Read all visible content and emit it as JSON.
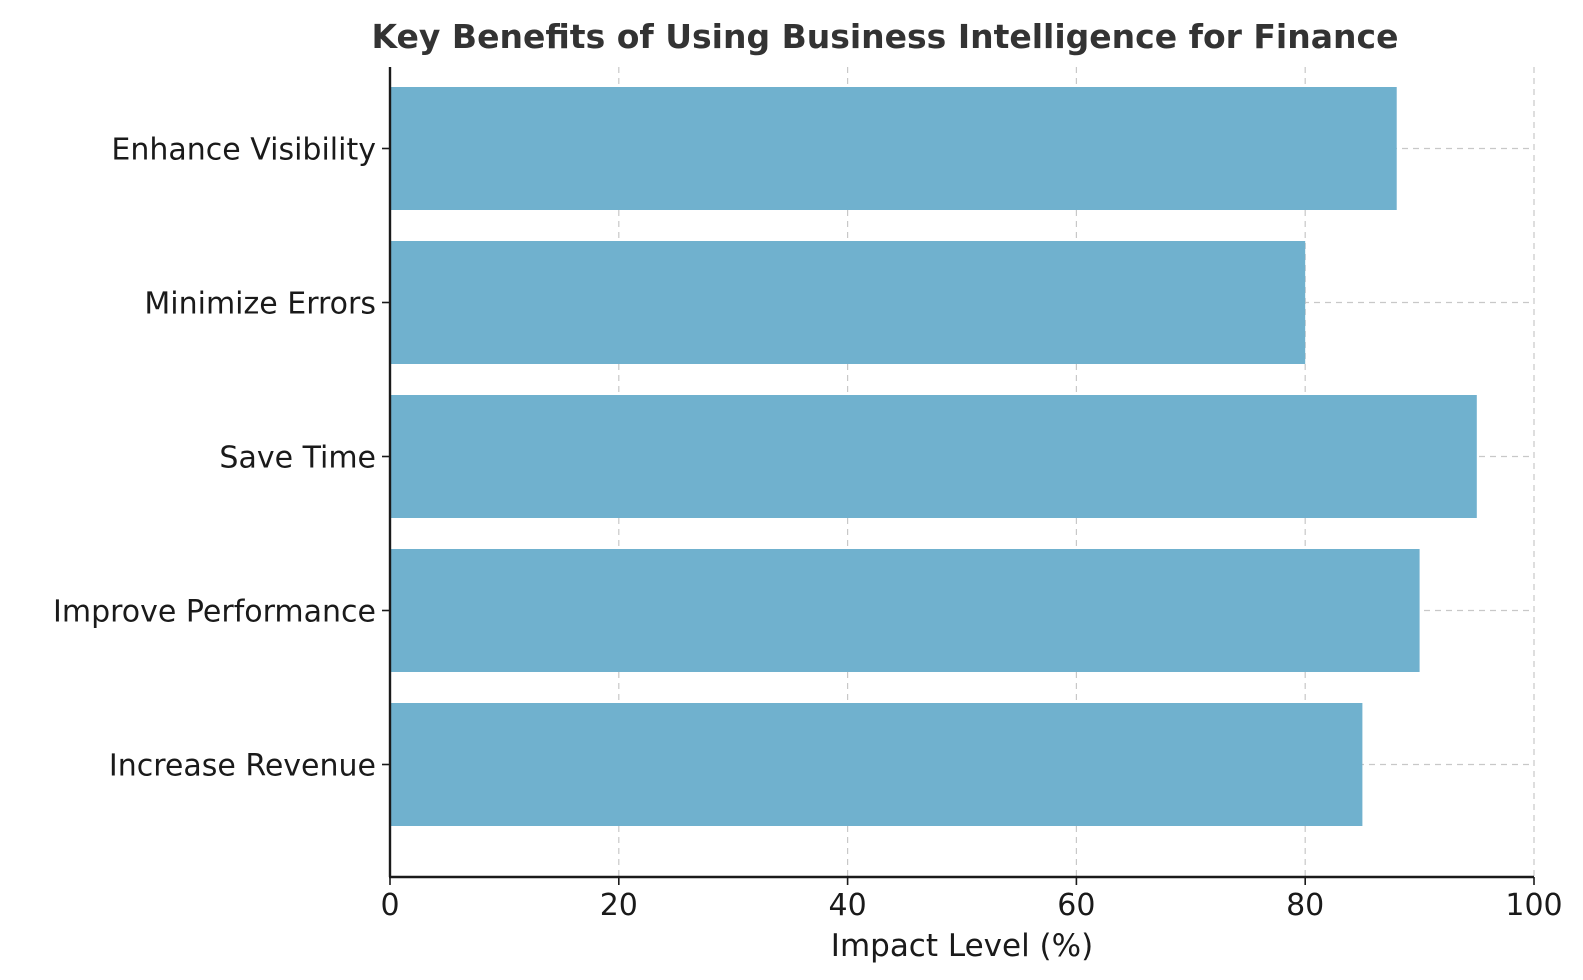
{
  "chart_data": {
    "type": "bar",
    "orientation": "horizontal",
    "title": "Key Benefits of Using Business Intelligence for Finance",
    "xlabel": "Impact Level (%)",
    "ylabel": "",
    "categories": [
      "Increase Revenue",
      "Improve Performance",
      "Save Time",
      "Minimize Errors",
      "Enhance Visibility"
    ],
    "values": [
      85,
      90,
      95,
      80,
      88
    ],
    "xlim": [
      0,
      100
    ],
    "xticks": [
      0,
      20,
      40,
      60,
      80,
      100
    ],
    "grid": true,
    "bar_color": "#70b1ce"
  }
}
